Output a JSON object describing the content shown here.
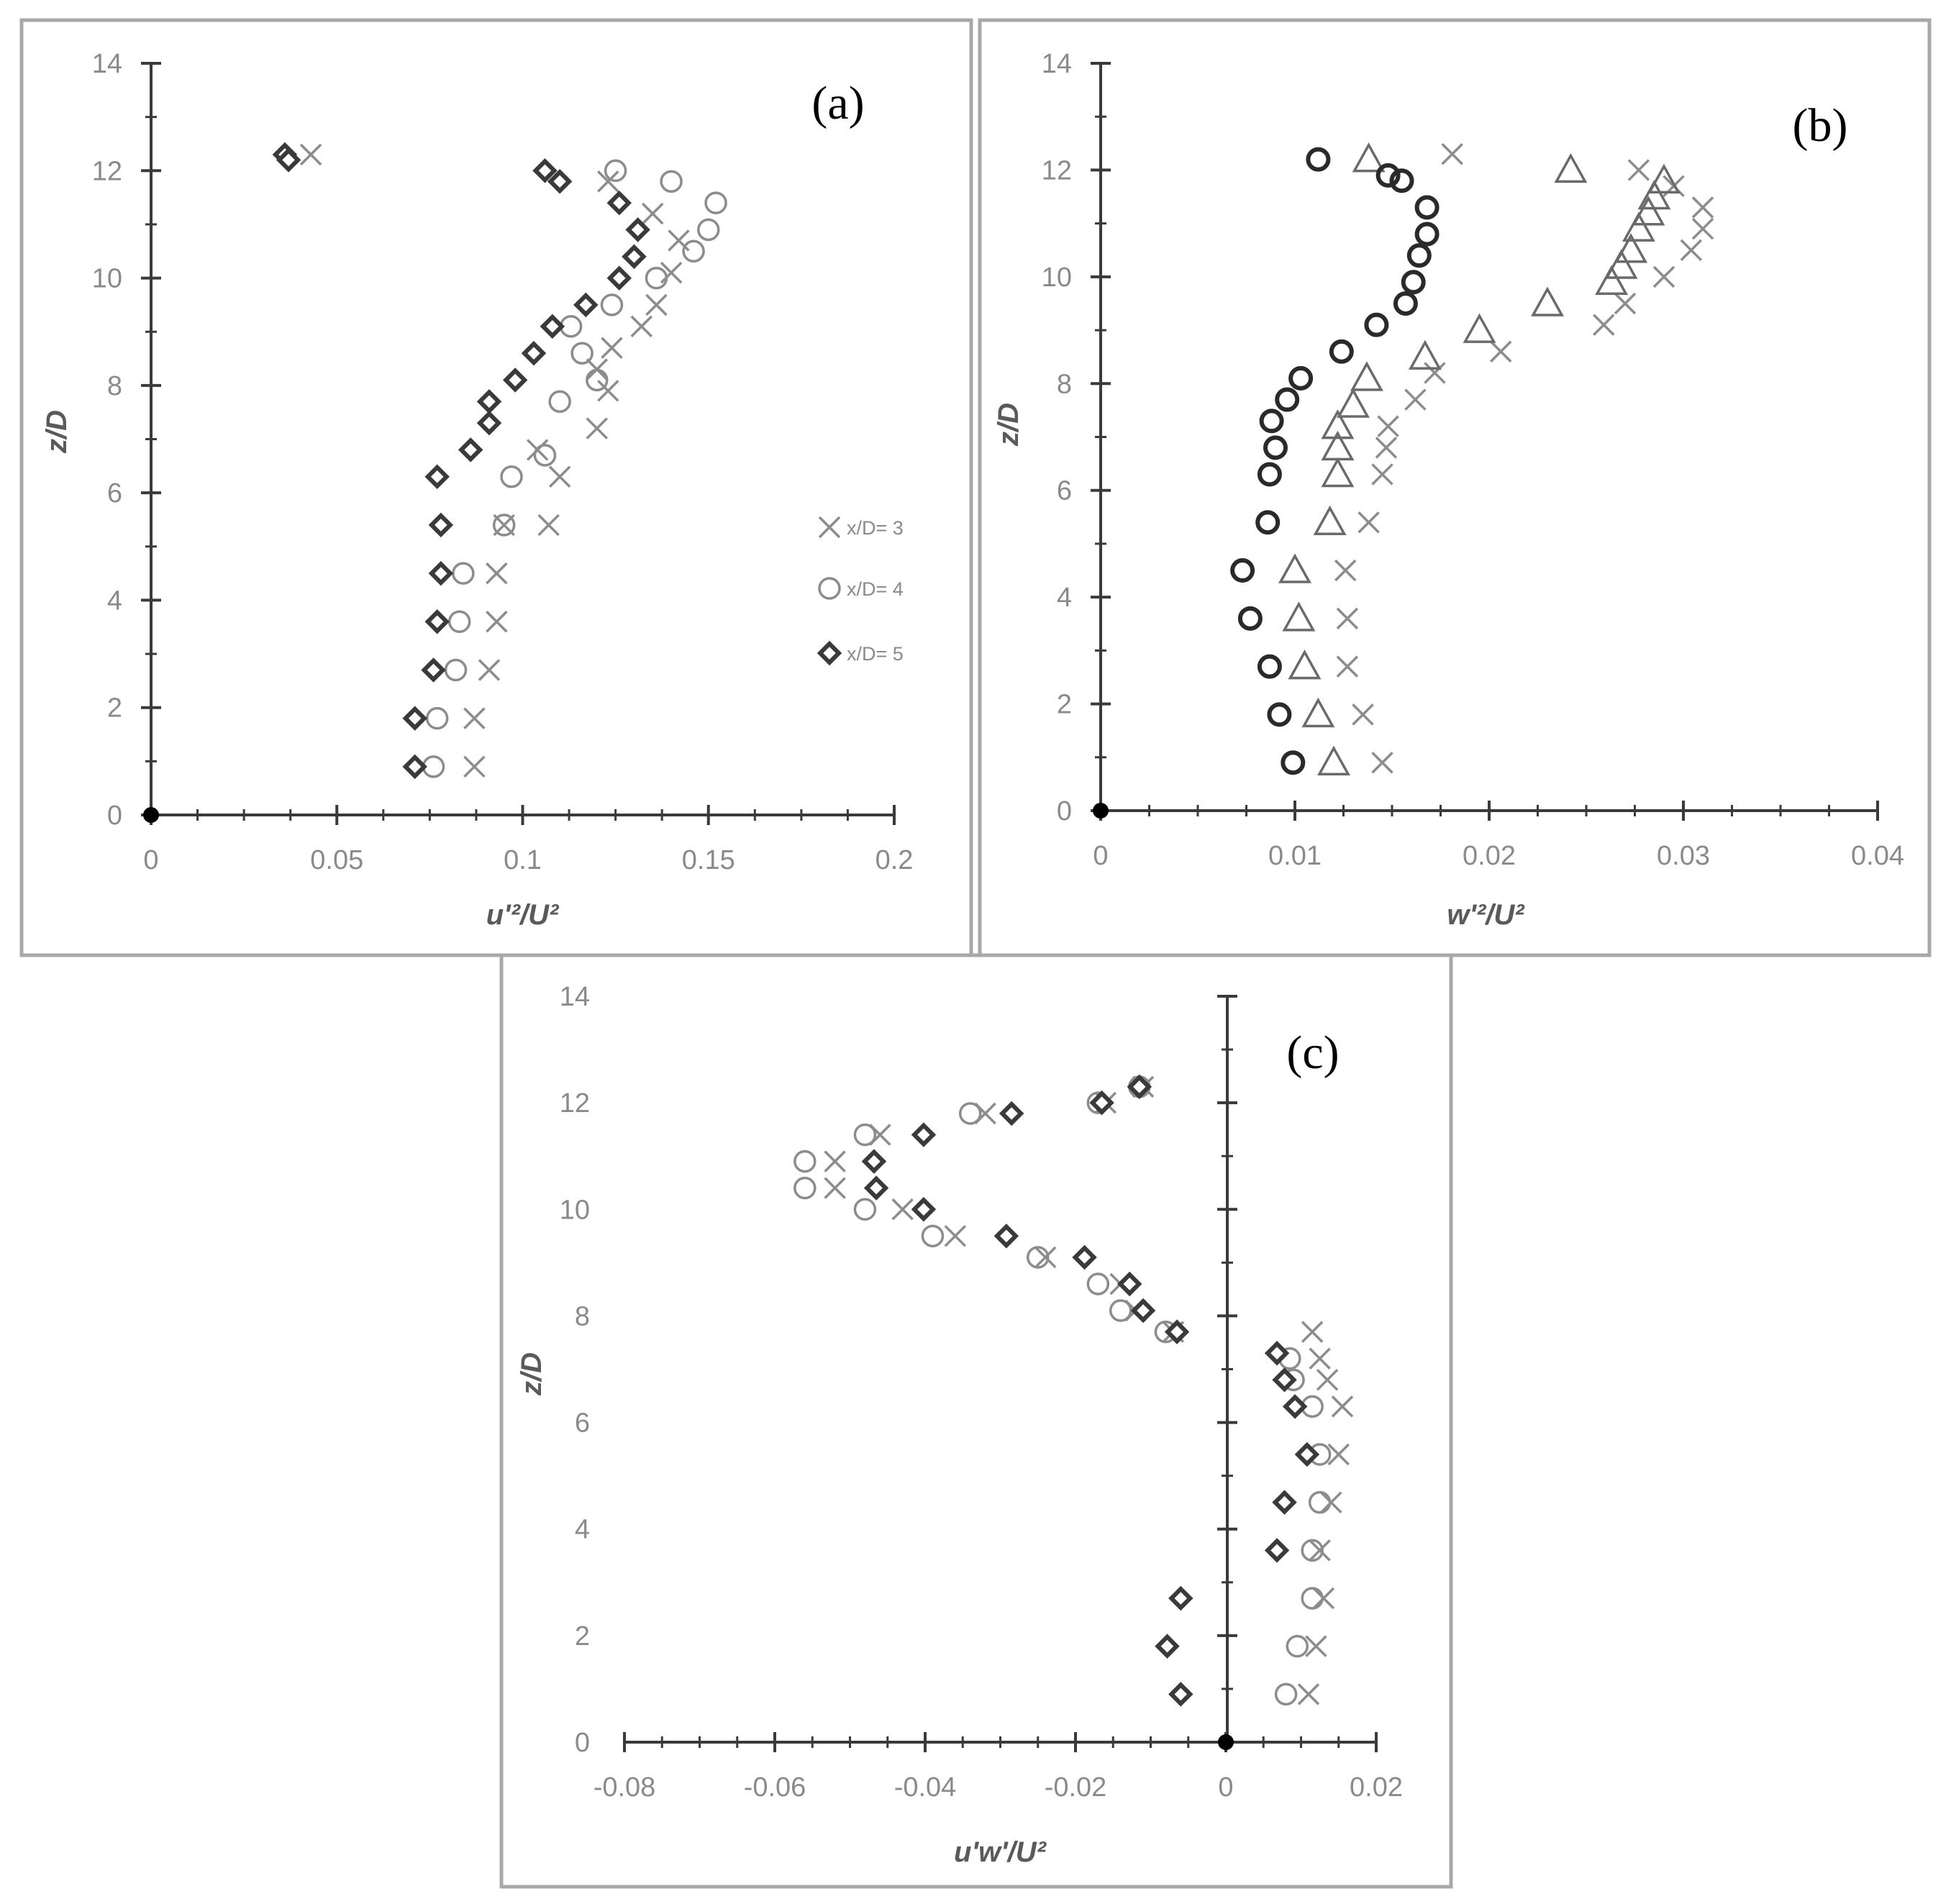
{
  "chart_data": [
    {
      "type": "scatter",
      "panel_label": "(a)",
      "xlabel": "u'²/U²",
      "ylabel": "z/D",
      "xlim": [
        0,
        0.2
      ],
      "ylim": [
        0,
        14
      ],
      "xticks": [
        0,
        0.05,
        0.1,
        0.15,
        0.2
      ],
      "xtick_labels": [
        "0",
        "0.05",
        "0.1",
        "0.15",
        "0.2"
      ],
      "yticks": [
        0,
        2,
        4,
        6,
        8,
        10,
        12,
        14
      ],
      "ytick_labels": [
        "0",
        "2",
        "4",
        "6",
        "8",
        "10",
        "12",
        "14"
      ],
      "legend_position": "right",
      "series": [
        {
          "name": "x/D= 3",
          "marker": "x",
          "color": "#8c8c8c",
          "x": [
            0.087,
            0.087,
            0.091,
            0.093,
            0.093,
            0.095,
            0.107,
            0.11,
            0.104,
            0.12,
            0.123,
            0.12,
            0.124,
            0.132,
            0.136,
            0.14,
            0.142,
            0.135,
            0.123,
            0.043
          ],
          "y": [
            0.9,
            1.8,
            2.7,
            3.6,
            4.5,
            5.4,
            5.4,
            6.3,
            6.8,
            7.2,
            7.9,
            8.3,
            8.7,
            9.1,
            9.5,
            10.1,
            10.7,
            11.2,
            11.8,
            12.3
          ]
        },
        {
          "name": "x/D= 4",
          "marker": "circle",
          "color": "#8c8c8c",
          "x": [
            0.076,
            0.077,
            0.082,
            0.083,
            0.084,
            0.095,
            0.097,
            0.106,
            0.11,
            0.12,
            0.116,
            0.113,
            0.124,
            0.136,
            0.146,
            0.15,
            0.152,
            0.14,
            0.125
          ],
          "y": [
            0.9,
            1.8,
            2.7,
            3.6,
            4.5,
            5.4,
            6.3,
            6.7,
            7.7,
            8.1,
            8.6,
            9.1,
            9.5,
            10.0,
            10.5,
            10.9,
            11.4,
            11.8,
            12.0
          ]
        },
        {
          "name": "x/D= 5",
          "marker": "diamond",
          "color": "#3a3a3a",
          "x": [
            0.071,
            0.071,
            0.076,
            0.077,
            0.078,
            0.078,
            0.077,
            0.086,
            0.091,
            0.091,
            0.098,
            0.103,
            0.108,
            0.117,
            0.126,
            0.13,
            0.131,
            0.126,
            0.11,
            0.106,
            0.036,
            0.037
          ],
          "y": [
            0.9,
            1.8,
            2.7,
            3.6,
            4.5,
            5.4,
            6.3,
            6.8,
            7.3,
            7.7,
            8.1,
            8.6,
            9.1,
            9.5,
            10.0,
            10.4,
            10.9,
            11.4,
            11.8,
            12.0,
            12.3,
            12.2
          ]
        }
      ]
    },
    {
      "type": "scatter",
      "panel_label": "(b)",
      "xlabel": "w'²/U²",
      "ylabel": "z/D",
      "xlim": [
        0,
        0.04
      ],
      "ylim": [
        0,
        14
      ],
      "xticks": [
        0,
        0.01,
        0.02,
        0.03,
        0.04
      ],
      "xtick_labels": [
        "0",
        "0.01",
        "0.02",
        "0.03",
        "0.04"
      ],
      "yticks": [
        0,
        2,
        4,
        6,
        8,
        10,
        12,
        14
      ],
      "ytick_labels": [
        "0",
        "2",
        "4",
        "6",
        "8",
        "10",
        "12",
        "14"
      ],
      "series": [
        {
          "name": "x/D= 3",
          "marker": "x",
          "color": "#8c8c8c",
          "x": [
            0.0145,
            0.0135,
            0.0127,
            0.0127,
            0.0126,
            0.0138,
            0.0145,
            0.0147,
            0.0148,
            0.0162,
            0.0172,
            0.0206,
            0.0259,
            0.027,
            0.029,
            0.0304,
            0.031,
            0.031,
            0.0295,
            0.0277,
            0.0181
          ],
          "y": [
            0.9,
            1.8,
            2.7,
            3.6,
            4.5,
            5.4,
            6.3,
            6.8,
            7.2,
            7.7,
            8.2,
            8.6,
            9.1,
            9.5,
            10.0,
            10.5,
            10.9,
            11.3,
            11.7,
            12.0,
            12.3
          ]
        },
        {
          "name": "x/D= 4",
          "marker": "triangle",
          "color": "#6a6a6a",
          "x": [
            0.012,
            0.0112,
            0.0105,
            0.0102,
            0.01,
            0.0118,
            0.0122,
            0.0122,
            0.0122,
            0.013,
            0.0137,
            0.0167,
            0.0195,
            0.023,
            0.0263,
            0.0268,
            0.0273,
            0.0277,
            0.0282,
            0.0285,
            0.029,
            0.0242,
            0.0138
          ],
          "y": [
            0.9,
            1.8,
            2.7,
            3.6,
            4.5,
            5.4,
            6.3,
            6.8,
            7.2,
            7.6,
            8.1,
            8.5,
            9.0,
            9.5,
            9.9,
            10.2,
            10.5,
            10.9,
            11.2,
            11.5,
            11.8,
            12.0,
            12.2
          ]
        },
        {
          "name": "",
          "marker": "circle",
          "color": "#2a2a2a",
          "x": [
            0.0099,
            0.0092,
            0.0087,
            0.0077,
            0.0073,
            0.0086,
            0.0087,
            0.009,
            0.0088,
            0.0096,
            0.0103,
            0.0124,
            0.0142,
            0.0157,
            0.0161,
            0.0164,
            0.0168,
            0.0168,
            0.0155,
            0.0148,
            0.0112
          ],
          "y": [
            0.9,
            1.8,
            2.7,
            3.6,
            4.5,
            5.4,
            6.3,
            6.8,
            7.3,
            7.7,
            8.1,
            8.6,
            9.1,
            9.5,
            9.9,
            10.4,
            10.8,
            11.3,
            11.8,
            11.9,
            12.2
          ]
        }
      ]
    },
    {
      "type": "scatter",
      "panel_label": "(c)",
      "xlabel": "u'w'/U²",
      "ylabel": "z/D",
      "xlim": [
        -0.08,
        0.02
      ],
      "ylim": [
        0,
        14
      ],
      "xticks": [
        -0.08,
        -0.06,
        -0.04,
        -0.02,
        0,
        0.02
      ],
      "xtick_labels": [
        "-0.08",
        "-0.06",
        "-0.04",
        "-0.02",
        "0",
        "0.02"
      ],
      "yticks": [
        0,
        2,
        4,
        6,
        8,
        10,
        12,
        14
      ],
      "ytick_labels": [
        "0",
        "2",
        "4",
        "6",
        "8",
        "10",
        "12",
        "14"
      ],
      "series": [
        {
          "name": "x/D= 3",
          "marker": "x",
          "color": "#8c8c8c",
          "x": [
            0.011,
            0.012,
            0.013,
            0.0125,
            0.014,
            0.015,
            0.0155,
            0.0135,
            0.0125,
            0.0115,
            -0.007,
            -0.012,
            -0.014,
            -0.024,
            -0.036,
            -0.043,
            -0.052,
            -0.052,
            -0.046,
            -0.032,
            -0.016,
            -0.011
          ],
          "y": [
            0.9,
            1.8,
            2.7,
            3.6,
            4.5,
            5.4,
            6.3,
            6.8,
            7.2,
            7.7,
            7.7,
            8.1,
            8.6,
            9.1,
            9.5,
            10.0,
            10.4,
            10.9,
            11.4,
            11.8,
            12.0,
            12.3
          ]
        },
        {
          "name": "x/D= 4",
          "marker": "circle",
          "color": "#8c8c8c",
          "x": [
            0.008,
            0.0095,
            0.0115,
            0.0115,
            0.0125,
            0.0125,
            0.0115,
            0.009,
            0.0085,
            -0.008,
            -0.014,
            -0.017,
            -0.025,
            -0.039,
            -0.048,
            -0.056,
            -0.056,
            -0.048,
            -0.034,
            -0.017,
            -0.0115
          ],
          "y": [
            0.9,
            1.8,
            2.7,
            3.6,
            4.5,
            5.4,
            6.3,
            6.8,
            7.2,
            7.7,
            8.1,
            8.6,
            9.1,
            9.5,
            10.0,
            10.4,
            10.9,
            11.4,
            11.8,
            12.0,
            12.3
          ]
        },
        {
          "name": "x/D= 5",
          "marker": "diamond",
          "color": "#3a3a3a",
          "x": [
            -0.006,
            -0.0078,
            -0.006,
            0.0068,
            0.0078,
            0.0108,
            0.0092,
            0.0078,
            0.0068,
            -0.0065,
            -0.011,
            -0.0128,
            -0.0188,
            -0.0292,
            -0.0402,
            -0.0465,
            -0.0468,
            -0.0402,
            -0.0285,
            -0.0165,
            -0.0115
          ],
          "y": [
            0.9,
            1.8,
            2.7,
            3.6,
            4.5,
            5.4,
            6.3,
            6.8,
            7.3,
            7.7,
            8.1,
            8.6,
            9.1,
            9.5,
            10.0,
            10.4,
            10.9,
            11.4,
            11.8,
            12.0,
            12.3
          ]
        }
      ]
    }
  ]
}
